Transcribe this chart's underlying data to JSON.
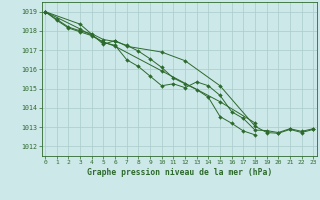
{
  "title": "Graphe pression niveau de la mer (hPa)",
  "hours": [
    0,
    1,
    2,
    3,
    4,
    5,
    6,
    7,
    8,
    9,
    10,
    11,
    12,
    13,
    14,
    15,
    16,
    17,
    18,
    19,
    20,
    21,
    22,
    23
  ],
  "series": [
    {
      "points": [
        [
          0,
          1019.0
        ],
        [
          1,
          1018.6
        ],
        [
          2,
          1018.2
        ],
        [
          3,
          1018.0
        ],
        [
          4,
          1017.85
        ],
        [
          5,
          1017.55
        ],
        [
          6,
          1017.45
        ],
        [
          7,
          1017.25
        ],
        [
          8,
          1016.95
        ],
        [
          9,
          1016.55
        ],
        [
          10,
          1016.1
        ],
        [
          11,
          1015.55
        ],
        [
          12,
          1015.25
        ],
        [
          13,
          1014.95
        ],
        [
          14,
          1014.55
        ],
        [
          15,
          1013.55
        ],
        [
          16,
          1013.2
        ],
        [
          17,
          1012.8
        ],
        [
          18,
          1012.6
        ]
      ]
    },
    {
      "points": [
        [
          0,
          1019.0
        ],
        [
          1,
          1018.55
        ],
        [
          2,
          1018.15
        ],
        [
          3,
          1017.95
        ],
        [
          4,
          1017.75
        ],
        [
          5,
          1017.4
        ],
        [
          6,
          1017.25
        ],
        [
          7,
          1016.5
        ],
        [
          8,
          1016.15
        ],
        [
          9,
          1015.65
        ],
        [
          10,
          1015.15
        ],
        [
          11,
          1015.25
        ],
        [
          12,
          1015.05
        ],
        [
          13,
          1015.35
        ],
        [
          14,
          1015.15
        ],
        [
          15,
          1014.65
        ],
        [
          16,
          1013.8
        ],
        [
          17,
          1013.45
        ],
        [
          18,
          1012.85
        ],
        [
          19,
          1012.82
        ],
        [
          20,
          1012.72
        ],
        [
          21,
          1012.92
        ],
        [
          22,
          1012.78
        ],
        [
          23,
          1012.92
        ]
      ]
    },
    {
      "points": [
        [
          0,
          1019.0
        ],
        [
          3,
          1018.35
        ],
        [
          5,
          1017.3
        ],
        [
          6,
          1017.5
        ],
        [
          7,
          1017.2
        ],
        [
          10,
          1016.9
        ],
        [
          12,
          1016.45
        ],
        [
          15,
          1015.15
        ],
        [
          18,
          1013.05
        ],
        [
          19,
          1012.72
        ],
        [
          20,
          1012.68
        ],
        [
          21,
          1012.88
        ],
        [
          22,
          1012.72
        ],
        [
          23,
          1012.88
        ]
      ]
    },
    {
      "points": [
        [
          0,
          1019.0
        ],
        [
          3,
          1018.1
        ],
        [
          5,
          1017.42
        ],
        [
          6,
          1017.2
        ],
        [
          10,
          1015.92
        ],
        [
          15,
          1014.32
        ],
        [
          18,
          1013.22
        ]
      ]
    }
  ],
  "ylim": [
    1011.5,
    1019.5
  ],
  "yticks": [
    1012,
    1013,
    1014,
    1015,
    1016,
    1017,
    1018,
    1019
  ],
  "xlim": [
    -0.3,
    23.3
  ],
  "bg_color": "#cde8e8",
  "grid_color": "#aacccc",
  "line_color": "#2d6a2d",
  "text_color": "#2d6a2d",
  "spine_color": "#2d6a2d",
  "fig_width": 3.2,
  "fig_height": 2.0,
  "dpi": 100
}
